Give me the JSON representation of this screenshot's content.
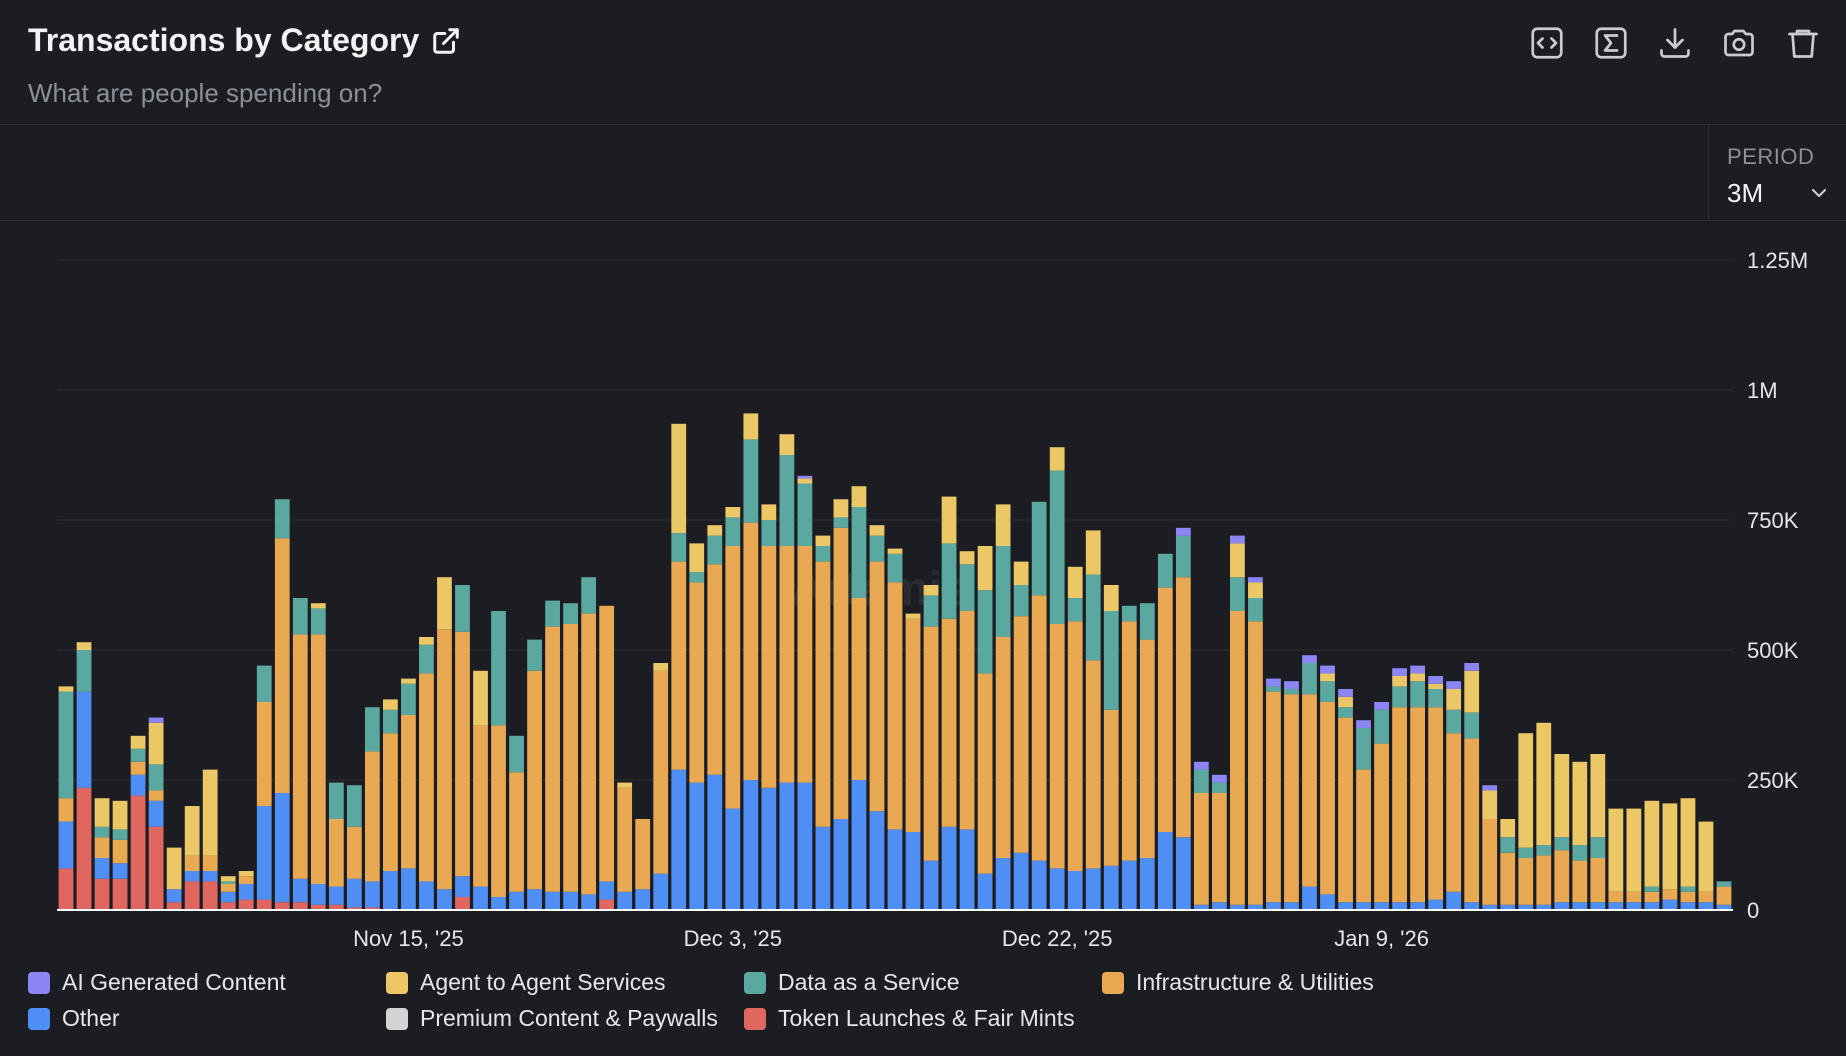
{
  "header": {
    "title": "Transactions by Category",
    "subtitle": "What are people spending on?"
  },
  "toolbar": {
    "icons": [
      "embed-code-icon",
      "sigma-formula-icon",
      "download-icon",
      "camera-icon",
      "trash-icon"
    ]
  },
  "period": {
    "label": "PERIOD",
    "value": "3M"
  },
  "watermark": "Artemis",
  "colors": {
    "AI Generated Content": "#8c86f5",
    "Agent to Agent Services": "#ebc766",
    "Data as a Service": "#5aa8a0",
    "Infrastructure & Utilities": "#e9a852",
    "Other": "#4f8ef5",
    "Premium Content & Paywalls": "#d4d4d4",
    "Token Launches & Fair Mints": "#e06660",
    "grid": "#2c2f36",
    "background": "#1b1d22"
  },
  "legend": [
    {
      "label": "AI Generated Content",
      "color": "#8c86f5"
    },
    {
      "label": "Agent to Agent Services",
      "color": "#ebc766"
    },
    {
      "label": "Data as a Service",
      "color": "#5aa8a0"
    },
    {
      "label": "Infrastructure & Utilities",
      "color": "#e9a852"
    },
    {
      "label": "Other",
      "color": "#4f8ef5"
    },
    {
      "label": "Premium Content & Paywalls",
      "color": "#d4d4d4"
    },
    {
      "label": "Token Launches & Fair Mints",
      "color": "#e06660"
    }
  ],
  "chart_data": {
    "type": "bar",
    "stacked": true,
    "title": "Transactions by Category",
    "subtitle": "What are people spending on?",
    "ylim": [
      0,
      1250000
    ],
    "y_ticks": [
      0,
      250000,
      500000,
      750000,
      1000000,
      1250000
    ],
    "y_tick_labels": [
      "0",
      "250K",
      "500K",
      "750K",
      "1M",
      "1.25M"
    ],
    "y_axis_side": "right",
    "x_tick_labels": [
      {
        "label": "Nov 15, '25",
        "index": 19
      },
      {
        "label": "Dec 3, '25",
        "index": 37
      },
      {
        "label": "Dec 22, '25",
        "index": 55
      },
      {
        "label": "Jan 9, '26",
        "index": 73
      }
    ],
    "grid": true,
    "legend_position": "bottom",
    "stack_order": [
      "Token Launches & Fair Mints",
      "Premium Content & Paywalls",
      "Other",
      "Infrastructure & Utilities",
      "Data as a Service",
      "Agent to Agent Services",
      "AI Generated Content"
    ],
    "series": [
      {
        "name": "Token Launches & Fair Mints",
        "values": [
          80000,
          235000,
          60000,
          60000,
          220000,
          160000,
          15000,
          55000,
          55000,
          15000,
          20000,
          20000,
          15000,
          15000,
          10000,
          10000,
          5000,
          5000,
          0,
          0,
          0,
          0,
          25000,
          0,
          0,
          0,
          0,
          0,
          0,
          0,
          20000,
          0,
          0,
          0,
          0,
          0,
          0,
          0,
          0,
          0,
          0,
          0,
          0,
          0,
          0,
          0,
          0,
          0,
          0,
          0,
          0,
          0,
          0,
          0,
          0,
          0,
          0,
          0,
          0,
          0,
          0,
          0,
          0,
          0,
          0,
          0,
          0,
          0,
          0,
          0,
          0,
          0,
          0,
          0,
          0,
          0,
          0,
          0,
          0,
          0,
          0,
          0,
          0,
          0,
          0,
          0,
          0,
          0,
          0,
          0,
          0,
          0,
          0
        ]
      },
      {
        "name": "Premium Content & Paywalls",
        "values": [
          0,
          0,
          0,
          0,
          0,
          0,
          0,
          0,
          0,
          0,
          0,
          0,
          0,
          0,
          0,
          0,
          0,
          0,
          0,
          0,
          0,
          0,
          0,
          0,
          0,
          0,
          0,
          0,
          0,
          0,
          0,
          0,
          0,
          0,
          0,
          0,
          0,
          0,
          0,
          0,
          0,
          0,
          0,
          0,
          0,
          0,
          0,
          0,
          0,
          0,
          0,
          0,
          0,
          0,
          0,
          0,
          0,
          0,
          0,
          0,
          0,
          0,
          0,
          0,
          0,
          0,
          0,
          0,
          0,
          0,
          0,
          0,
          0,
          0,
          0,
          0,
          0,
          0,
          0,
          0,
          0,
          0,
          0,
          0,
          0,
          0,
          0,
          0,
          0,
          0,
          0,
          0,
          0
        ]
      },
      {
        "name": "Other",
        "values": [
          90000,
          185000,
          40000,
          30000,
          40000,
          50000,
          25000,
          20000,
          20000,
          20000,
          30000,
          180000,
          210000,
          45000,
          40000,
          35000,
          55000,
          50000,
          75000,
          80000,
          55000,
          40000,
          40000,
          45000,
          25000,
          35000,
          40000,
          35000,
          35000,
          30000,
          35000,
          35000,
          40000,
          70000,
          270000,
          245000,
          260000,
          195000,
          250000,
          235000,
          245000,
          245000,
          160000,
          175000,
          250000,
          190000,
          155000,
          150000,
          95000,
          160000,
          155000,
          70000,
          100000,
          110000,
          95000,
          80000,
          75000,
          80000,
          85000,
          95000,
          100000,
          150000,
          140000,
          10000,
          15000,
          10000,
          10000,
          15000,
          15000,
          45000,
          30000,
          15000,
          15000,
          15000,
          15000,
          15000,
          20000,
          35000,
          15000,
          10000,
          10000,
          10000,
          10000,
          15000,
          15000,
          15000,
          15000,
          15000,
          15000,
          20000,
          15000,
          15000,
          10000
        ]
      },
      {
        "name": "Infrastructure & Utilities",
        "values": [
          45000,
          0,
          40000,
          45000,
          25000,
          20000,
          0,
          30000,
          30000,
          15000,
          15000,
          200000,
          490000,
          470000,
          480000,
          130000,
          100000,
          250000,
          265000,
          295000,
          400000,
          500000,
          470000,
          310000,
          330000,
          230000,
          420000,
          510000,
          515000,
          540000,
          530000,
          200000,
          135000,
          390000,
          400000,
          385000,
          405000,
          505000,
          495000,
          465000,
          455000,
          455000,
          510000,
          560000,
          350000,
          480000,
          475000,
          410000,
          450000,
          400000,
          420000,
          385000,
          425000,
          455000,
          510000,
          470000,
          480000,
          400000,
          300000,
          460000,
          420000,
          470000,
          500000,
          215000,
          210000,
          565000,
          545000,
          405000,
          400000,
          370000,
          370000,
          355000,
          255000,
          305000,
          375000,
          375000,
          370000,
          305000,
          315000,
          165000,
          100000,
          90000,
          95000,
          100000,
          80000,
          85000,
          20000,
          20000,
          20000,
          20000,
          20000,
          20000,
          35000
        ]
      },
      {
        "name": "Data as a Service",
        "values": [
          205000,
          80000,
          20000,
          20000,
          25000,
          50000,
          0,
          0,
          0,
          5000,
          0,
          70000,
          75000,
          70000,
          50000,
          70000,
          80000,
          85000,
          45000,
          60000,
          55000,
          0,
          90000,
          0,
          220000,
          70000,
          60000,
          50000,
          40000,
          70000,
          0,
          0,
          0,
          0,
          55000,
          20000,
          55000,
          55000,
          160000,
          50000,
          175000,
          120000,
          30000,
          20000,
          175000,
          50000,
          55000,
          0,
          60000,
          145000,
          90000,
          160000,
          175000,
          60000,
          180000,
          295000,
          45000,
          165000,
          190000,
          30000,
          70000,
          65000,
          80000,
          45000,
          20000,
          65000,
          45000,
          10000,
          10000,
          60000,
          40000,
          20000,
          80000,
          65000,
          40000,
          50000,
          35000,
          45000,
          50000,
          0,
          30000,
          20000,
          20000,
          25000,
          30000,
          40000,
          0,
          0,
          10000,
          0,
          10000,
          0,
          10000
        ]
      },
      {
        "name": "Agent to Agent Services",
        "values": [
          10000,
          15000,
          55000,
          55000,
          25000,
          80000,
          80000,
          95000,
          165000,
          10000,
          10000,
          0,
          0,
          0,
          10000,
          0,
          0,
          0,
          20000,
          10000,
          15000,
          100000,
          0,
          105000,
          0,
          0,
          0,
          0,
          0,
          0,
          0,
          10000,
          0,
          15000,
          210000,
          55000,
          20000,
          20000,
          50000,
          30000,
          40000,
          10000,
          20000,
          35000,
          40000,
          20000,
          10000,
          10000,
          20000,
          90000,
          25000,
          85000,
          80000,
          45000,
          0,
          45000,
          60000,
          85000,
          50000,
          0,
          0,
          0,
          0,
          0,
          0,
          65000,
          30000,
          0,
          0,
          0,
          15000,
          20000,
          0,
          0,
          20000,
          15000,
          10000,
          40000,
          80000,
          55000,
          35000,
          220000,
          235000,
          160000,
          160000,
          160000,
          160000,
          160000,
          165000,
          165000,
          170000,
          135000
        ]
      },
      {
        "name": "AI Generated Content",
        "values": [
          0,
          0,
          0,
          0,
          0,
          10000,
          0,
          0,
          0,
          0,
          0,
          0,
          0,
          0,
          0,
          0,
          0,
          0,
          0,
          0,
          0,
          0,
          0,
          0,
          0,
          0,
          0,
          0,
          0,
          0,
          0,
          0,
          0,
          0,
          0,
          0,
          0,
          0,
          0,
          0,
          0,
          5000,
          0,
          0,
          0,
          0,
          0,
          0,
          0,
          0,
          0,
          0,
          0,
          0,
          0,
          0,
          0,
          0,
          0,
          0,
          0,
          0,
          15000,
          15000,
          15000,
          15000,
          10000,
          15000,
          15000,
          15000,
          15000,
          15000,
          15000,
          15000,
          15000,
          15000,
          15000,
          15000,
          15000,
          10000,
          0,
          0,
          0,
          0,
          0,
          0,
          0,
          0,
          0,
          0,
          0,
          0
        ]
      }
    ]
  }
}
